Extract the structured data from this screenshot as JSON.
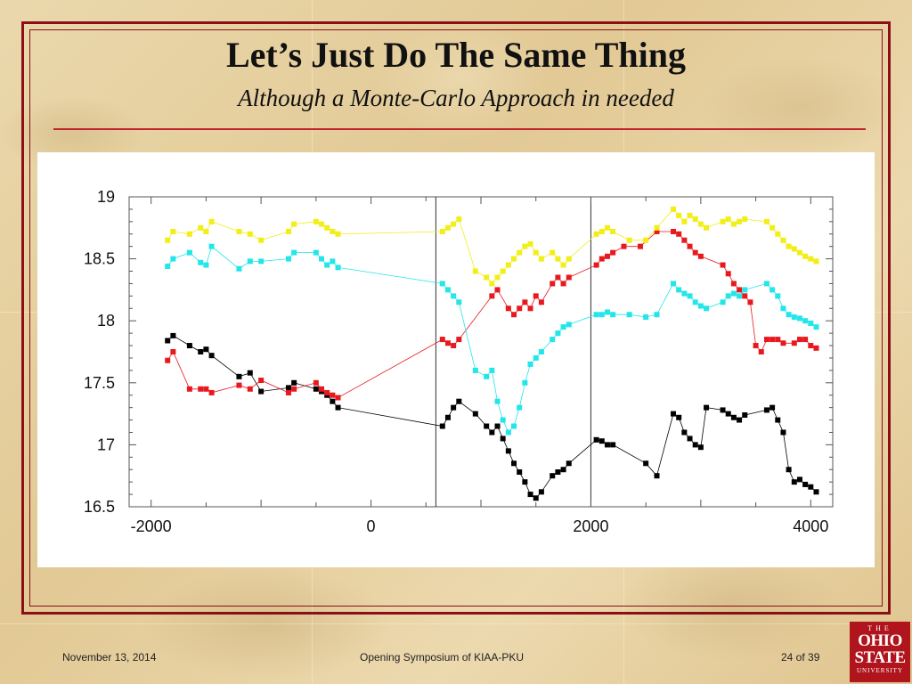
{
  "slide": {
    "title": "Let’s Just Do The Same Thing",
    "subtitle": "Although a Monte-Carlo Approach in needed"
  },
  "footer": {
    "date": "November 13, 2014",
    "event": "Opening Symposium of KIAA-PKU",
    "page": "24 of 39"
  },
  "logo": {
    "the": "THE",
    "line1": "OHIO",
    "line2": "STATE",
    "line3": "UNIVERSITY"
  },
  "colors": {
    "frame": "#8b0f17",
    "rule": "#c0242a",
    "black_series": "#000000",
    "red_series": "#e8191e",
    "cyan_series": "#22e6ea",
    "yellow_series": "#f2ee16"
  },
  "chart_data": {
    "type": "scatter",
    "title": "",
    "xlabel": "",
    "ylabel": "",
    "xlim": [
      -2200,
      4200
    ],
    "ylim": [
      19,
      16.5
    ],
    "y_inverted": true,
    "grid": false,
    "x_ticks": [
      "-2000",
      "0",
      "2000",
      "4000"
    ],
    "x_tick_values": [
      -2000,
      0,
      2000,
      4000
    ],
    "y_ticks": [
      "16.5",
      "17",
      "17.5",
      "18",
      "18.5",
      "19"
    ],
    "y_tick_values": [
      16.5,
      17,
      17.5,
      18,
      18.5,
      19
    ],
    "vertical_lines": [
      590,
      2000
    ],
    "series": [
      {
        "color": "#000000",
        "x": [
          -1850,
          -1800,
          -1650,
          -1550,
          -1500,
          -1450,
          -1200,
          -1100,
          -1000,
          -750,
          -700,
          -500,
          -450,
          -400,
          -350,
          -300,
          650,
          700,
          750,
          800,
          950,
          1050,
          1100,
          1150,
          1200,
          1250,
          1300,
          1350,
          1400,
          1450,
          1500,
          1550,
          1650,
          1700,
          1750,
          1800,
          2050,
          2100,
          2150,
          2200,
          2500,
          2600,
          2750,
          2800,
          2850,
          2900,
          2950,
          3000,
          3050,
          3200,
          3250,
          3300,
          3350,
          3400,
          3600,
          3650,
          3700,
          3750,
          3800,
          3850,
          3900,
          3950,
          4000,
          4050
        ],
        "y": [
          17.84,
          17.88,
          17.8,
          17.75,
          17.77,
          17.72,
          17.55,
          17.58,
          17.43,
          17.46,
          17.5,
          17.45,
          17.43,
          17.4,
          17.35,
          17.3,
          17.15,
          17.22,
          17.3,
          17.35,
          17.25,
          17.15,
          17.1,
          17.15,
          17.05,
          16.95,
          16.85,
          16.78,
          16.7,
          16.6,
          16.57,
          16.62,
          16.75,
          16.78,
          16.8,
          16.85,
          17.04,
          17.03,
          17,
          17.0,
          16.85,
          16.75,
          17.25,
          17.22,
          17.1,
          17.05,
          17.0,
          16.98,
          17.3,
          17.28,
          17.25,
          17.22,
          17.2,
          17.24,
          17.28,
          17.3,
          17.2,
          17.1,
          16.8,
          16.7,
          16.72,
          16.68,
          16.66,
          16.62
        ]
      },
      {
        "color": "#e8191e",
        "x": [
          -1850,
          -1800,
          -1650,
          -1550,
          -1500,
          -1450,
          -1200,
          -1100,
          -1000,
          -750,
          -700,
          -500,
          -450,
          -400,
          -350,
          -300,
          650,
          700,
          750,
          800,
          1100,
          1150,
          1250,
          1300,
          1350,
          1400,
          1450,
          1500,
          1550,
          1650,
          1700,
          1750,
          1800,
          2050,
          2100,
          2150,
          2200,
          2300,
          2450,
          2600,
          2750,
          2800,
          2850,
          2900,
          2950,
          3000,
          3200,
          3250,
          3300,
          3350,
          3400,
          3450,
          3500,
          3550,
          3600,
          3650,
          3700,
          3750,
          3850,
          3900,
          3950,
          4000,
          4050
        ],
        "y": [
          17.68,
          17.75,
          17.45,
          17.45,
          17.45,
          17.42,
          17.48,
          17.45,
          17.52,
          17.42,
          17.45,
          17.5,
          17.45,
          17.42,
          17.4,
          17.38,
          17.85,
          17.82,
          17.8,
          17.85,
          18.2,
          18.25,
          18.1,
          18.05,
          18.1,
          18.15,
          18.1,
          18.2,
          18.15,
          18.3,
          18.35,
          18.3,
          18.35,
          18.45,
          18.5,
          18.52,
          18.55,
          18.6,
          18.6,
          18.72,
          18.72,
          18.7,
          18.65,
          18.6,
          18.55,
          18.52,
          18.45,
          18.38,
          18.3,
          18.25,
          18.2,
          18.15,
          17.8,
          17.75,
          17.85,
          17.85,
          17.85,
          17.82,
          17.82,
          17.85,
          17.85,
          17.8,
          17.78
        ]
      },
      {
        "color": "#22e6ea",
        "x": [
          -1850,
          -1800,
          -1650,
          -1550,
          -1500,
          -1450,
          -1200,
          -1100,
          -1000,
          -750,
          -700,
          -500,
          -450,
          -400,
          -350,
          -300,
          650,
          700,
          750,
          800,
          950,
          1050,
          1100,
          1150,
          1200,
          1250,
          1300,
          1350,
          1400,
          1450,
          1500,
          1550,
          1650,
          1700,
          1750,
          1800,
          2050,
          2100,
          2150,
          2200,
          2350,
          2500,
          2600,
          2750,
          2800,
          2850,
          2900,
          2950,
          3000,
          3050,
          3200,
          3250,
          3300,
          3350,
          3400,
          3600,
          3650,
          3700,
          3750,
          3800,
          3850,
          3900,
          3950,
          4000,
          4050
        ],
        "y": [
          18.44,
          18.5,
          18.55,
          18.47,
          18.45,
          18.6,
          18.42,
          18.48,
          18.48,
          18.5,
          18.55,
          18.55,
          18.5,
          18.45,
          18.48,
          18.43,
          18.3,
          18.25,
          18.2,
          18.15,
          17.6,
          17.55,
          17.6,
          17.35,
          17.2,
          17.1,
          17.15,
          17.3,
          17.5,
          17.65,
          17.7,
          17.75,
          17.85,
          17.9,
          17.95,
          17.97,
          18.05,
          18.05,
          18.07,
          18.05,
          18.05,
          18.03,
          18.05,
          18.3,
          18.25,
          18.22,
          18.2,
          18.15,
          18.12,
          18.1,
          18.15,
          18.2,
          18.22,
          18.2,
          18.25,
          18.3,
          18.25,
          18.2,
          18.1,
          18.05,
          18.03,
          18.02,
          18.0,
          17.98,
          17.95
        ]
      },
      {
        "color": "#f2ee16",
        "x": [
          -1850,
          -1800,
          -1650,
          -1550,
          -1500,
          -1450,
          -1200,
          -1100,
          -1000,
          -750,
          -700,
          -500,
          -450,
          -400,
          -350,
          -300,
          650,
          700,
          750,
          800,
          950,
          1050,
          1100,
          1150,
          1200,
          1250,
          1300,
          1350,
          1400,
          1450,
          1500,
          1550,
          1650,
          1700,
          1750,
          1800,
          2050,
          2100,
          2150,
          2200,
          2350,
          2500,
          2600,
          2750,
          2800,
          2850,
          2900,
          2950,
          3000,
          3050,
          3200,
          3250,
          3300,
          3350,
          3400,
          3600,
          3650,
          3700,
          3750,
          3800,
          3850,
          3900,
          3950,
          4000,
          4050
        ],
        "y": [
          18.65,
          18.72,
          18.7,
          18.75,
          18.72,
          18.8,
          18.72,
          18.7,
          18.65,
          18.72,
          18.78,
          18.8,
          18.78,
          18.75,
          18.72,
          18.7,
          18.72,
          18.75,
          18.78,
          18.82,
          18.4,
          18.35,
          18.3,
          18.35,
          18.4,
          18.45,
          18.5,
          18.55,
          18.6,
          18.62,
          18.55,
          18.5,
          18.55,
          18.5,
          18.45,
          18.5,
          18.7,
          18.72,
          18.75,
          18.72,
          18.65,
          18.65,
          18.75,
          18.9,
          18.85,
          18.8,
          18.85,
          18.82,
          18.78,
          18.75,
          18.8,
          18.82,
          18.78,
          18.8,
          18.82,
          18.8,
          18.75,
          18.7,
          18.65,
          18.6,
          18.58,
          18.55,
          18.52,
          18.5,
          18.48
        ]
      }
    ]
  }
}
